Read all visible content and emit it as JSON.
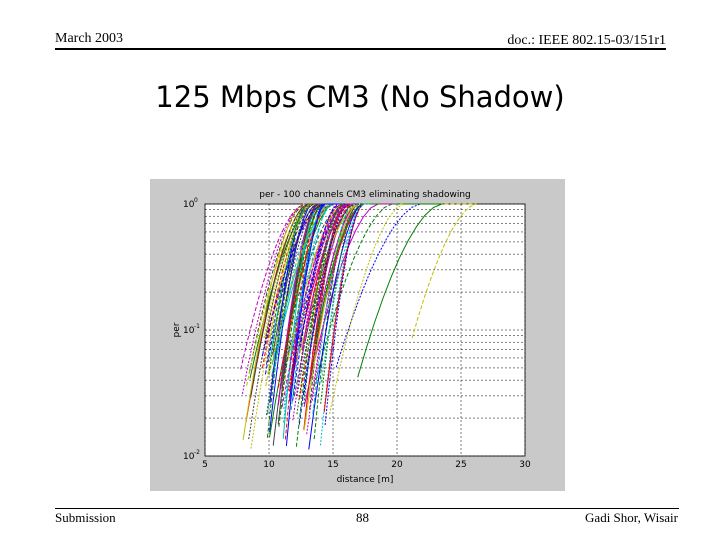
{
  "header": {
    "date": "March 2003",
    "doc_id": "doc.: IEEE 802.15-03/151r1"
  },
  "slide": {
    "title": "125 Mbps CM3 (No Shadow)"
  },
  "footer": {
    "left": "Submission",
    "page": "88",
    "right": "Gadi Shor, Wisair"
  },
  "chart_data": {
    "type": "line",
    "title": "per - 100 channels CM3 eliminating shadowing",
    "xlabel": "distance [m]",
    "ylabel": "per",
    "x_ticks": [
      "5",
      "10",
      "15",
      "20",
      "25",
      "30"
    ],
    "xlim": [
      5,
      30
    ],
    "y_scale": "log",
    "ylim": [
      0.01,
      1
    ],
    "y_ticks": [
      {
        "base": "10",
        "exp": "0"
      },
      {
        "base": "10",
        "exp": "-1"
      },
      {
        "base": "10",
        "exp": "-2"
      }
    ],
    "grid": true,
    "series_count": 100,
    "series_summary": "100 PER-vs-distance curves; each rises steeply from about 0.01-0.05 near 9-16 m up to 1 by about 13-22 m, with a few outliers reaching 1 near 26 m",
    "colors": [
      "#0000ff",
      "#008000",
      "#ff0000",
      "#00bfbf",
      "#bf00bf",
      "#bfbf00",
      "#404040"
    ]
  }
}
